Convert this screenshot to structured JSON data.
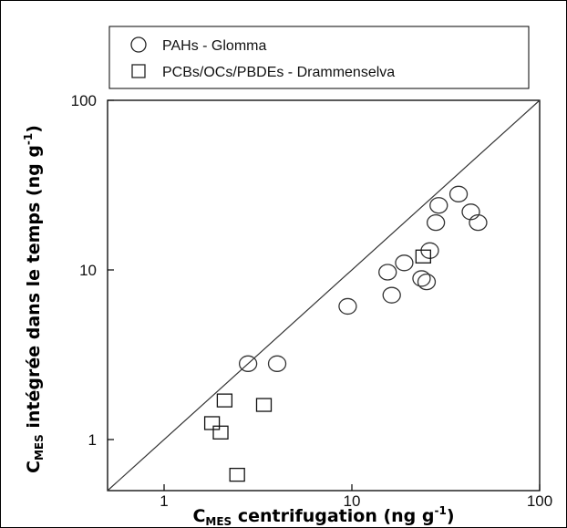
{
  "chart_data": {
    "type": "scatter",
    "x_scale": "log",
    "y_scale": "log",
    "xlim": [
      0.5,
      100
    ],
    "ylim": [
      0.5,
      100
    ],
    "x_ticks": [
      1,
      10,
      100
    ],
    "y_ticks": [
      1,
      10,
      100
    ],
    "x_tick_labels": [
      "1",
      "10",
      "100"
    ],
    "y_tick_labels": [
      "1",
      "10",
      "100"
    ],
    "xlabel": {
      "main": "C",
      "sub": "MES",
      "text": " centrifugation (ng g",
      "sup": "-1",
      "end": ")"
    },
    "ylabel": {
      "main": "C",
      "sub": "MES",
      "text": " intégrée dans le temps (ng g",
      "sup": "-1",
      "end": ")"
    },
    "reference_line": "1:1",
    "legend_position": "top",
    "grid": false,
    "series": [
      {
        "name": "PAHs - Glomma",
        "marker": "circle",
        "points": [
          [
            2.8,
            2.8
          ],
          [
            4.0,
            2.8
          ],
          [
            9.5,
            6.1
          ],
          [
            15.5,
            9.7
          ],
          [
            16.3,
            7.1
          ],
          [
            19.0,
            11.0
          ],
          [
            23.5,
            8.9
          ],
          [
            25.0,
            8.5
          ],
          [
            26.0,
            13.0
          ],
          [
            28.0,
            19.0
          ],
          [
            29.0,
            24.0
          ],
          [
            37.0,
            28.0
          ],
          [
            43.0,
            22.0
          ],
          [
            47.0,
            19.0
          ]
        ]
      },
      {
        "name": "PCBs/OCs/PBDEs - Drammenselva",
        "marker": "square",
        "points": [
          [
            1.8,
            1.25
          ],
          [
            2.0,
            1.1
          ],
          [
            2.1,
            1.7
          ],
          [
            2.45,
            0.62
          ],
          [
            3.4,
            1.6
          ],
          [
            24.0,
            12.0
          ]
        ]
      }
    ]
  }
}
